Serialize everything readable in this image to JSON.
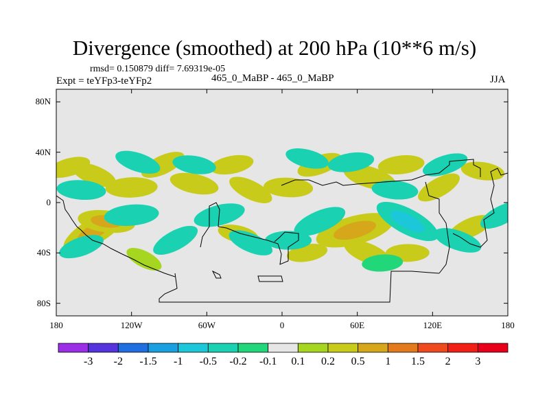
{
  "header": {
    "title": "Divergence (smoothed) at 200 hPa (10**6 m/s)",
    "stats": "rmsd= 0.150879 diff= 7.69319e-05",
    "expt": "Expt = teYFp3-teYFp2",
    "case": "465_0_MaBP - 465_0_MaBP",
    "season": "JJA"
  },
  "chart_data": {
    "type": "heatmap",
    "title": "Divergence (smoothed) at 200 hPa (10**6 m/s)",
    "projection": "cylindrical equidistant",
    "xlim": [
      -180,
      180
    ],
    "ylim": [
      -90,
      90
    ],
    "x_ticks": [
      {
        "value": -180,
        "label": "180"
      },
      {
        "value": -120,
        "label": "120W"
      },
      {
        "value": -60,
        "label": "60W"
      },
      {
        "value": 0,
        "label": "0"
      },
      {
        "value": 60,
        "label": "60E"
      },
      {
        "value": 120,
        "label": "120E"
      },
      {
        "value": 180,
        "label": "180"
      }
    ],
    "y_ticks": [
      {
        "value": 80,
        "label": "80N"
      },
      {
        "value": 40,
        "label": "40N"
      },
      {
        "value": 0,
        "label": "0"
      },
      {
        "value": -40,
        "label": "40S"
      },
      {
        "value": -80,
        "label": "80S"
      }
    ],
    "colorbar": {
      "labels": [
        "-3",
        "-2",
        "-1.5",
        "-1",
        "-0.5",
        "-0.2",
        "-0.1",
        "0.1",
        "0.2",
        "0.5",
        "1",
        "1.5",
        "2",
        "3"
      ],
      "colors": [
        "#9b2fe6",
        "#5533dd",
        "#1f6fe0",
        "#1aa0e0",
        "#1cc7d9",
        "#1ad1b2",
        "#22d67a",
        "#e6e6e6",
        "#a6d620",
        "#c8cb1a",
        "#d6a71a",
        "#e37a1d",
        "#ee4a1e",
        "#f02016",
        "#e8001a"
      ],
      "no_change_color": "#e6e6e6"
    },
    "anomalies": [
      {
        "lon": -150,
        "lat": -23,
        "value": 0.7
      },
      {
        "lon": -140,
        "lat": -15,
        "value": 0.5
      },
      {
        "lon": -170,
        "lat": 28,
        "value": 0.25
      },
      {
        "lon": -150,
        "lat": 22,
        "value": 0.3
      },
      {
        "lon": -120,
        "lat": 12,
        "value": 0.4
      },
      {
        "lon": -95,
        "lat": 30,
        "value": 0.3
      },
      {
        "lon": -70,
        "lat": 15,
        "value": 0.35
      },
      {
        "lon": -40,
        "lat": 30,
        "value": 0.25
      },
      {
        "lon": -25,
        "lat": 10,
        "value": 0.3
      },
      {
        "lon": 5,
        "lat": 12,
        "value": 0.35
      },
      {
        "lon": 30,
        "lat": 30,
        "value": 0.3
      },
      {
        "lon": 70,
        "lat": 20,
        "value": 0.45
      },
      {
        "lon": 95,
        "lat": 30,
        "value": 0.3
      },
      {
        "lon": 125,
        "lat": 12,
        "value": 0.3
      },
      {
        "lon": 160,
        "lat": 25,
        "value": 0.25
      },
      {
        "lon": 58,
        "lat": -22,
        "value": 0.9
      },
      {
        "lon": 68,
        "lat": -40,
        "value": 0.35
      },
      {
        "lon": 100,
        "lat": -40,
        "value": 0.25
      },
      {
        "lon": 150,
        "lat": -20,
        "value": 0.3
      },
      {
        "lon": -35,
        "lat": -25,
        "value": 0.2
      },
      {
        "lon": 20,
        "lat": -40,
        "value": 0.2
      },
      {
        "lon": -110,
        "lat": -45,
        "value": 0.15
      },
      {
        "lon": -160,
        "lat": 10,
        "value": -0.35
      },
      {
        "lon": -160,
        "lat": -35,
        "value": -0.3
      },
      {
        "lon": -115,
        "lat": 32,
        "value": -0.3
      },
      {
        "lon": -120,
        "lat": -10,
        "value": -0.45
      },
      {
        "lon": -85,
        "lat": -30,
        "value": -0.35
      },
      {
        "lon": -70,
        "lat": 30,
        "value": -0.25
      },
      {
        "lon": -50,
        "lat": -10,
        "value": -0.4
      },
      {
        "lon": -25,
        "lat": -32,
        "value": -0.3
      },
      {
        "lon": 5,
        "lat": -30,
        "value": -0.3
      },
      {
        "lon": 30,
        "lat": -15,
        "value": -0.45
      },
      {
        "lon": 20,
        "lat": 35,
        "value": -0.25
      },
      {
        "lon": 55,
        "lat": 32,
        "value": -0.3
      },
      {
        "lon": 100,
        "lat": -15,
        "value": -0.7
      },
      {
        "lon": 90,
        "lat": 10,
        "value": -0.3
      },
      {
        "lon": 130,
        "lat": 30,
        "value": -0.3
      },
      {
        "lon": 140,
        "lat": -30,
        "value": -0.35
      },
      {
        "lon": 80,
        "lat": -48,
        "value": -0.2
      },
      {
        "lon": 175,
        "lat": -10,
        "value": -0.3
      }
    ]
  }
}
